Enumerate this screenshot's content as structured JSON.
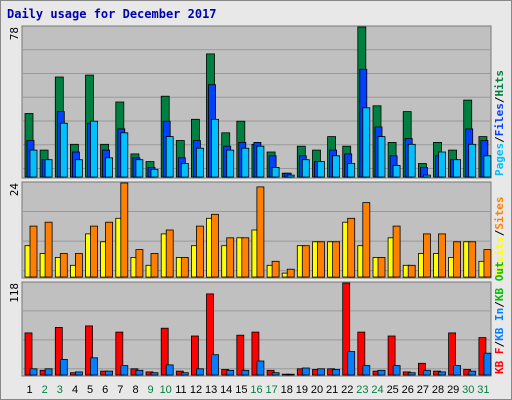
{
  "title": "Daily usage for December 2017",
  "colors": {
    "pages": "#00c0ff",
    "files": "#0040ff",
    "hits": "#008040",
    "visits": "#ffff00",
    "sites": "#ff8000",
    "kb_out": "#00c000",
    "kb_in": "#0080ff",
    "kb_f": "#ff0000",
    "weekday": "#000000",
    "weekend": "#008040",
    "panel_bg": "#c0c0c0",
    "grid": "#999999"
  },
  "chart_data": [
    {
      "type": "bar",
      "panel": "hits",
      "max_label": "78",
      "ylim": [
        0,
        78
      ],
      "x": [
        "1",
        "2",
        "3",
        "4",
        "5",
        "6",
        "7",
        "8",
        "9",
        "10",
        "11",
        "12",
        "13",
        "14",
        "15",
        "16",
        "17",
        "18",
        "19",
        "20",
        "21",
        "22",
        "23",
        "24",
        "25",
        "26",
        "27",
        "28",
        "29",
        "30",
        "31"
      ],
      "legend": [
        {
          "label": "Pages",
          "key": "pages"
        },
        {
          "label": "Files",
          "key": "files"
        },
        {
          "label": "Hits",
          "key": "hits"
        }
      ],
      "series": [
        {
          "name": "Hits",
          "key": "hits",
          "values": [
            33,
            14,
            52,
            17,
            53,
            17,
            39,
            12,
            8,
            42,
            19,
            30,
            64,
            23,
            29,
            17,
            13,
            2,
            16,
            14,
            21,
            16,
            78,
            37,
            18,
            34,
            7,
            18,
            14,
            40,
            21
          ]
        },
        {
          "name": "Files",
          "key": "files",
          "values": [
            19,
            9,
            34,
            13,
            28,
            14,
            25,
            10,
            5,
            29,
            10,
            19,
            48,
            16,
            18,
            18,
            11,
            2,
            11,
            8,
            14,
            12,
            56,
            26,
            11,
            20,
            5,
            11,
            9,
            25,
            19
          ]
        },
        {
          "name": "Pages",
          "key": "pages",
          "values": [
            14,
            9,
            28,
            9,
            29,
            10,
            23,
            9,
            4,
            21,
            7,
            15,
            30,
            14,
            15,
            16,
            5,
            1,
            9,
            8,
            11,
            7,
            36,
            21,
            6,
            17,
            1,
            13,
            9,
            17,
            11
          ]
        }
      ]
    },
    {
      "type": "bar",
      "panel": "visits",
      "max_label": "24",
      "ylim": [
        0,
        24
      ],
      "x": [
        "1",
        "2",
        "3",
        "4",
        "5",
        "6",
        "7",
        "8",
        "9",
        "10",
        "11",
        "12",
        "13",
        "14",
        "15",
        "16",
        "17",
        "18",
        "19",
        "20",
        "21",
        "22",
        "23",
        "24",
        "25",
        "26",
        "27",
        "28",
        "29",
        "30",
        "31"
      ],
      "legend": [
        {
          "label": "Visits",
          "key": "visits"
        },
        {
          "label": "Sites",
          "key": "sites"
        }
      ],
      "series": [
        {
          "name": "Visits",
          "key": "visits",
          "values": [
            8,
            6,
            5,
            3,
            11,
            9,
            15,
            5,
            3,
            11,
            5,
            8,
            15,
            8,
            10,
            12,
            3,
            1,
            8,
            9,
            9,
            14,
            8,
            5,
            10,
            3,
            6,
            6,
            5,
            9,
            4
          ]
        },
        {
          "name": "Sites",
          "key": "sites",
          "values": [
            13,
            14,
            6,
            6,
            13,
            14,
            24,
            7,
            6,
            12,
            5,
            13,
            16,
            10,
            10,
            23,
            4,
            2,
            8,
            9,
            9,
            15,
            19,
            5,
            13,
            3,
            11,
            11,
            9,
            9,
            7
          ]
        }
      ]
    },
    {
      "type": "bar",
      "panel": "kbytes",
      "max_label": "118",
      "ylim": [
        0,
        118
      ],
      "x": [
        "1",
        "2",
        "3",
        "4",
        "5",
        "6",
        "7",
        "8",
        "9",
        "10",
        "11",
        "12",
        "13",
        "14",
        "15",
        "16",
        "17",
        "18",
        "19",
        "20",
        "21",
        "22",
        "23",
        "24",
        "25",
        "26",
        "27",
        "28",
        "29",
        "30",
        "31"
      ],
      "legend": [
        {
          "label": "KB F",
          "key": "kb_f"
        },
        {
          "label": "KB In",
          "key": "kb_in"
        },
        {
          "label": "KB Out",
          "key": "kb_out"
        }
      ],
      "series": [
        {
          "name": "KB F",
          "key": "kb_f",
          "values": [
            54,
            6,
            61,
            3,
            63,
            5,
            55,
            8,
            4,
            60,
            5,
            50,
            104,
            7,
            51,
            55,
            6,
            1,
            8,
            7,
            8,
            118,
            55,
            5,
            50,
            4,
            15,
            5,
            54,
            7,
            48
          ]
        },
        {
          "name": "KB In",
          "key": "kb_in",
          "values": [
            8,
            8,
            20,
            4,
            22,
            5,
            12,
            6,
            3,
            13,
            3,
            8,
            26,
            6,
            6,
            18,
            3,
            1,
            9,
            8,
            7,
            30,
            12,
            6,
            12,
            3,
            6,
            4,
            12,
            5,
            28
          ]
        }
      ]
    }
  ]
}
